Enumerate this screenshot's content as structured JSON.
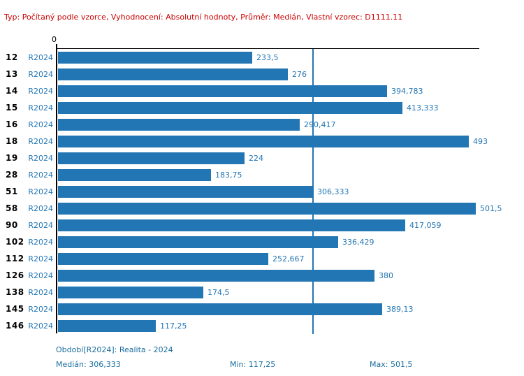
{
  "header": {
    "text": "Typ: Počítaný podle vzorce, Vyhodnocení: Absolutní hodnoty, Průměr: Medián, Vlastní vzorec: D1111.11"
  },
  "chart_data": {
    "type": "bar",
    "orientation": "horizontal",
    "title": "",
    "xlabel": "",
    "ylabel": "",
    "categories": [
      "12",
      "13",
      "14",
      "15",
      "16",
      "18",
      "19",
      "28",
      "51",
      "58",
      "90",
      "102",
      "112",
      "126",
      "138",
      "145",
      "146"
    ],
    "series_label": "R2024",
    "values": [
      233.5,
      276,
      394.783,
      413.333,
      290.417,
      493,
      224,
      183.75,
      306.333,
      501.5,
      417.059,
      336.429,
      252.667,
      380,
      174.5,
      389.13,
      117.25
    ],
    "value_labels": [
      "233,5",
      "276",
      "394,783",
      "413,333",
      "290,417",
      "493",
      "224",
      "183,75",
      "306,333",
      "501,5",
      "417,059",
      "336,429",
      "252,667",
      "380",
      "174,5",
      "389,13",
      "117,25"
    ],
    "xlim": [
      0,
      506.5
    ],
    "x_axis_ticks": [
      "0"
    ],
    "median": 306.333,
    "median_line": true,
    "grid": false,
    "legend_position": "none"
  },
  "footer": {
    "period_label": "Období[R2024]: Realita - 2024",
    "median_label": "Medián: 306,333",
    "min_label": "Min: 117,25",
    "max_label": "Max: 501,5"
  },
  "colors": {
    "bar": "#2376b4",
    "median_line": "#2376b4",
    "header_text": "#cc0000",
    "footer_text": "#1a6d9e",
    "axis": "#000000"
  }
}
